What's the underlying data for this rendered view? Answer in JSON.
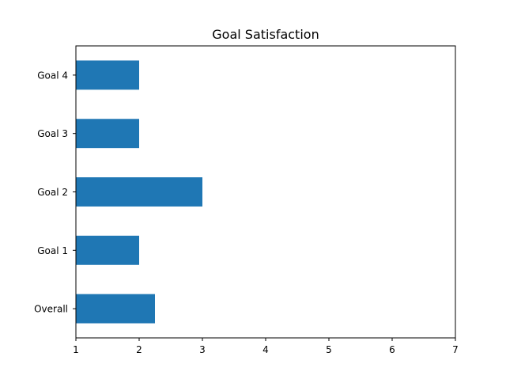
{
  "chart_data": {
    "type": "bar",
    "orientation": "horizontal",
    "title": "Goal Satisfaction",
    "xlabel": "",
    "ylabel": "",
    "categories": [
      "Overall",
      "Goal 1",
      "Goal 2",
      "Goal 3",
      "Goal 4"
    ],
    "values": [
      2.25,
      2,
      3,
      2,
      2
    ],
    "xlim": [
      1,
      7
    ],
    "x_ticks": [
      "1",
      "2",
      "3",
      "4",
      "5",
      "6",
      "7"
    ],
    "bar_color": "#1f77b4",
    "grid": false,
    "legend": "none"
  }
}
